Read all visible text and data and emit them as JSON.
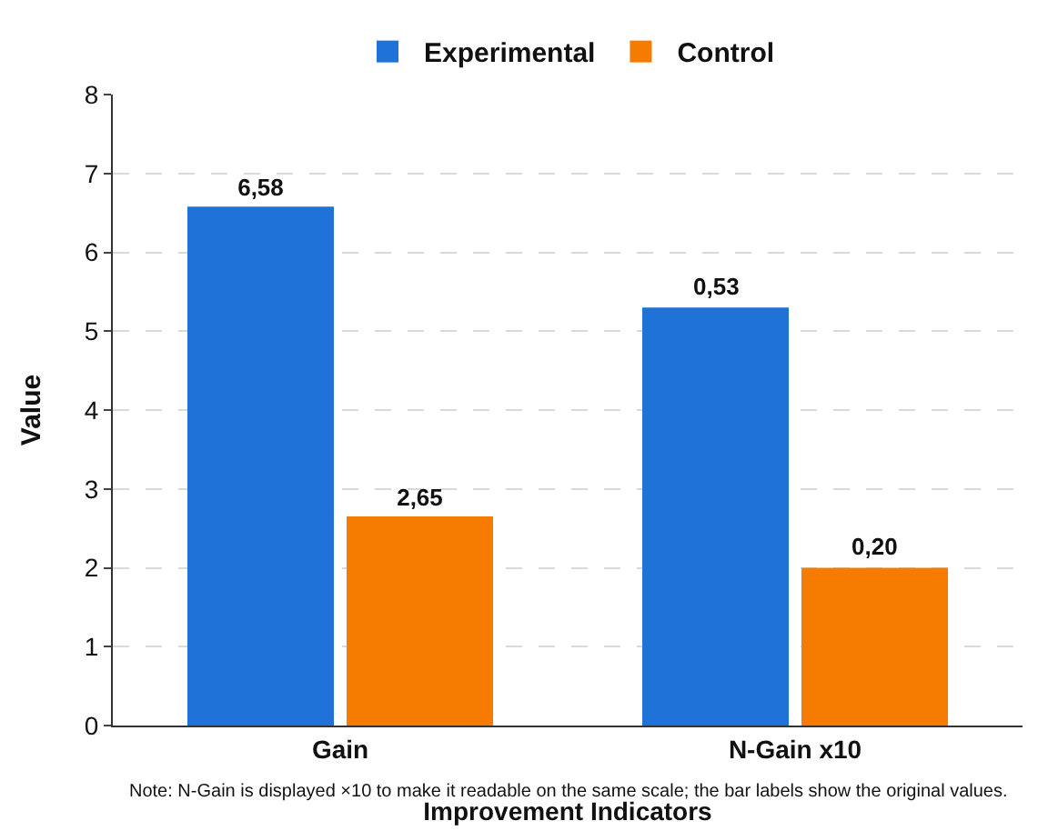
{
  "chart_data": {
    "type": "bar",
    "categories": [
      "Gain",
      "N-Gain x10"
    ],
    "series": [
      {
        "name": "Experimental",
        "color": "#1f72d8",
        "values": [
          6.58,
          5.3
        ],
        "value_labels": [
          "6,58",
          null
        ]
      },
      {
        "name": "Control",
        "color": "#f57c00",
        "values": [
          2.65,
          2.0
        ],
        "value_labels": [
          "2,65",
          null
        ]
      }
    ],
    "xlabel": "Improvement Indicators",
    "ylabel": "Value",
    "ylim": [
      0,
      8
    ],
    "yticks": [
      0,
      1,
      2,
      3,
      4,
      5,
      6,
      7,
      8
    ],
    "grid": "y",
    "legend": "top",
    "annotations": [
      {
        "text": "0,53",
        "x": "N-Gain x10",
        "y": 5.3
      },
      {
        "text": "0,20",
        "x": "N-Gain x10",
        "y": 2.0
      },
      "Note: N-Gain is displayed ×10 to make it readable on the same scale; the bar labels show the original values."
    ]
  }
}
